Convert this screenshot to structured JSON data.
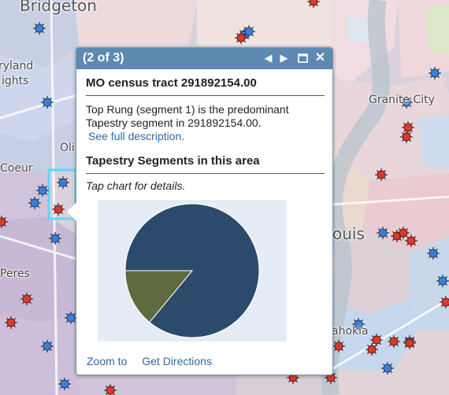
{
  "map": {
    "places": [
      {
        "name": "Bridgeton"
      },
      {
        "name": "ryland"
      },
      {
        "name": "ights"
      },
      {
        "name": "Granite City"
      },
      {
        "name": "Oli"
      },
      {
        "name": "Coeur"
      },
      {
        "name": "Peres"
      },
      {
        "name": "ouis"
      },
      {
        "name": "ahokia"
      }
    ]
  },
  "popup": {
    "counter": "(2 of 3)",
    "title": "MO census tract 291892154.00",
    "description": "Top Rung (segment 1) is the predominant Tapestry segment in 291892154.00.",
    "description_link": "See full description.",
    "section_title": "Tapestry Segments in this area",
    "hint": "Tap chart for details.",
    "actions": {
      "zoom": "Zoom to",
      "directions": "Get Directions"
    },
    "icons": {
      "prev": "prev-arrow-icon",
      "next": "next-arrow-icon",
      "maximize": "maximize-icon",
      "close": "close-icon"
    }
  },
  "chart_data": {
    "type": "pie",
    "title": "",
    "slices": [
      {
        "value": 86,
        "color": "#2c4a6b"
      },
      {
        "value": 14,
        "color": "#5f6b3e"
      }
    ]
  }
}
